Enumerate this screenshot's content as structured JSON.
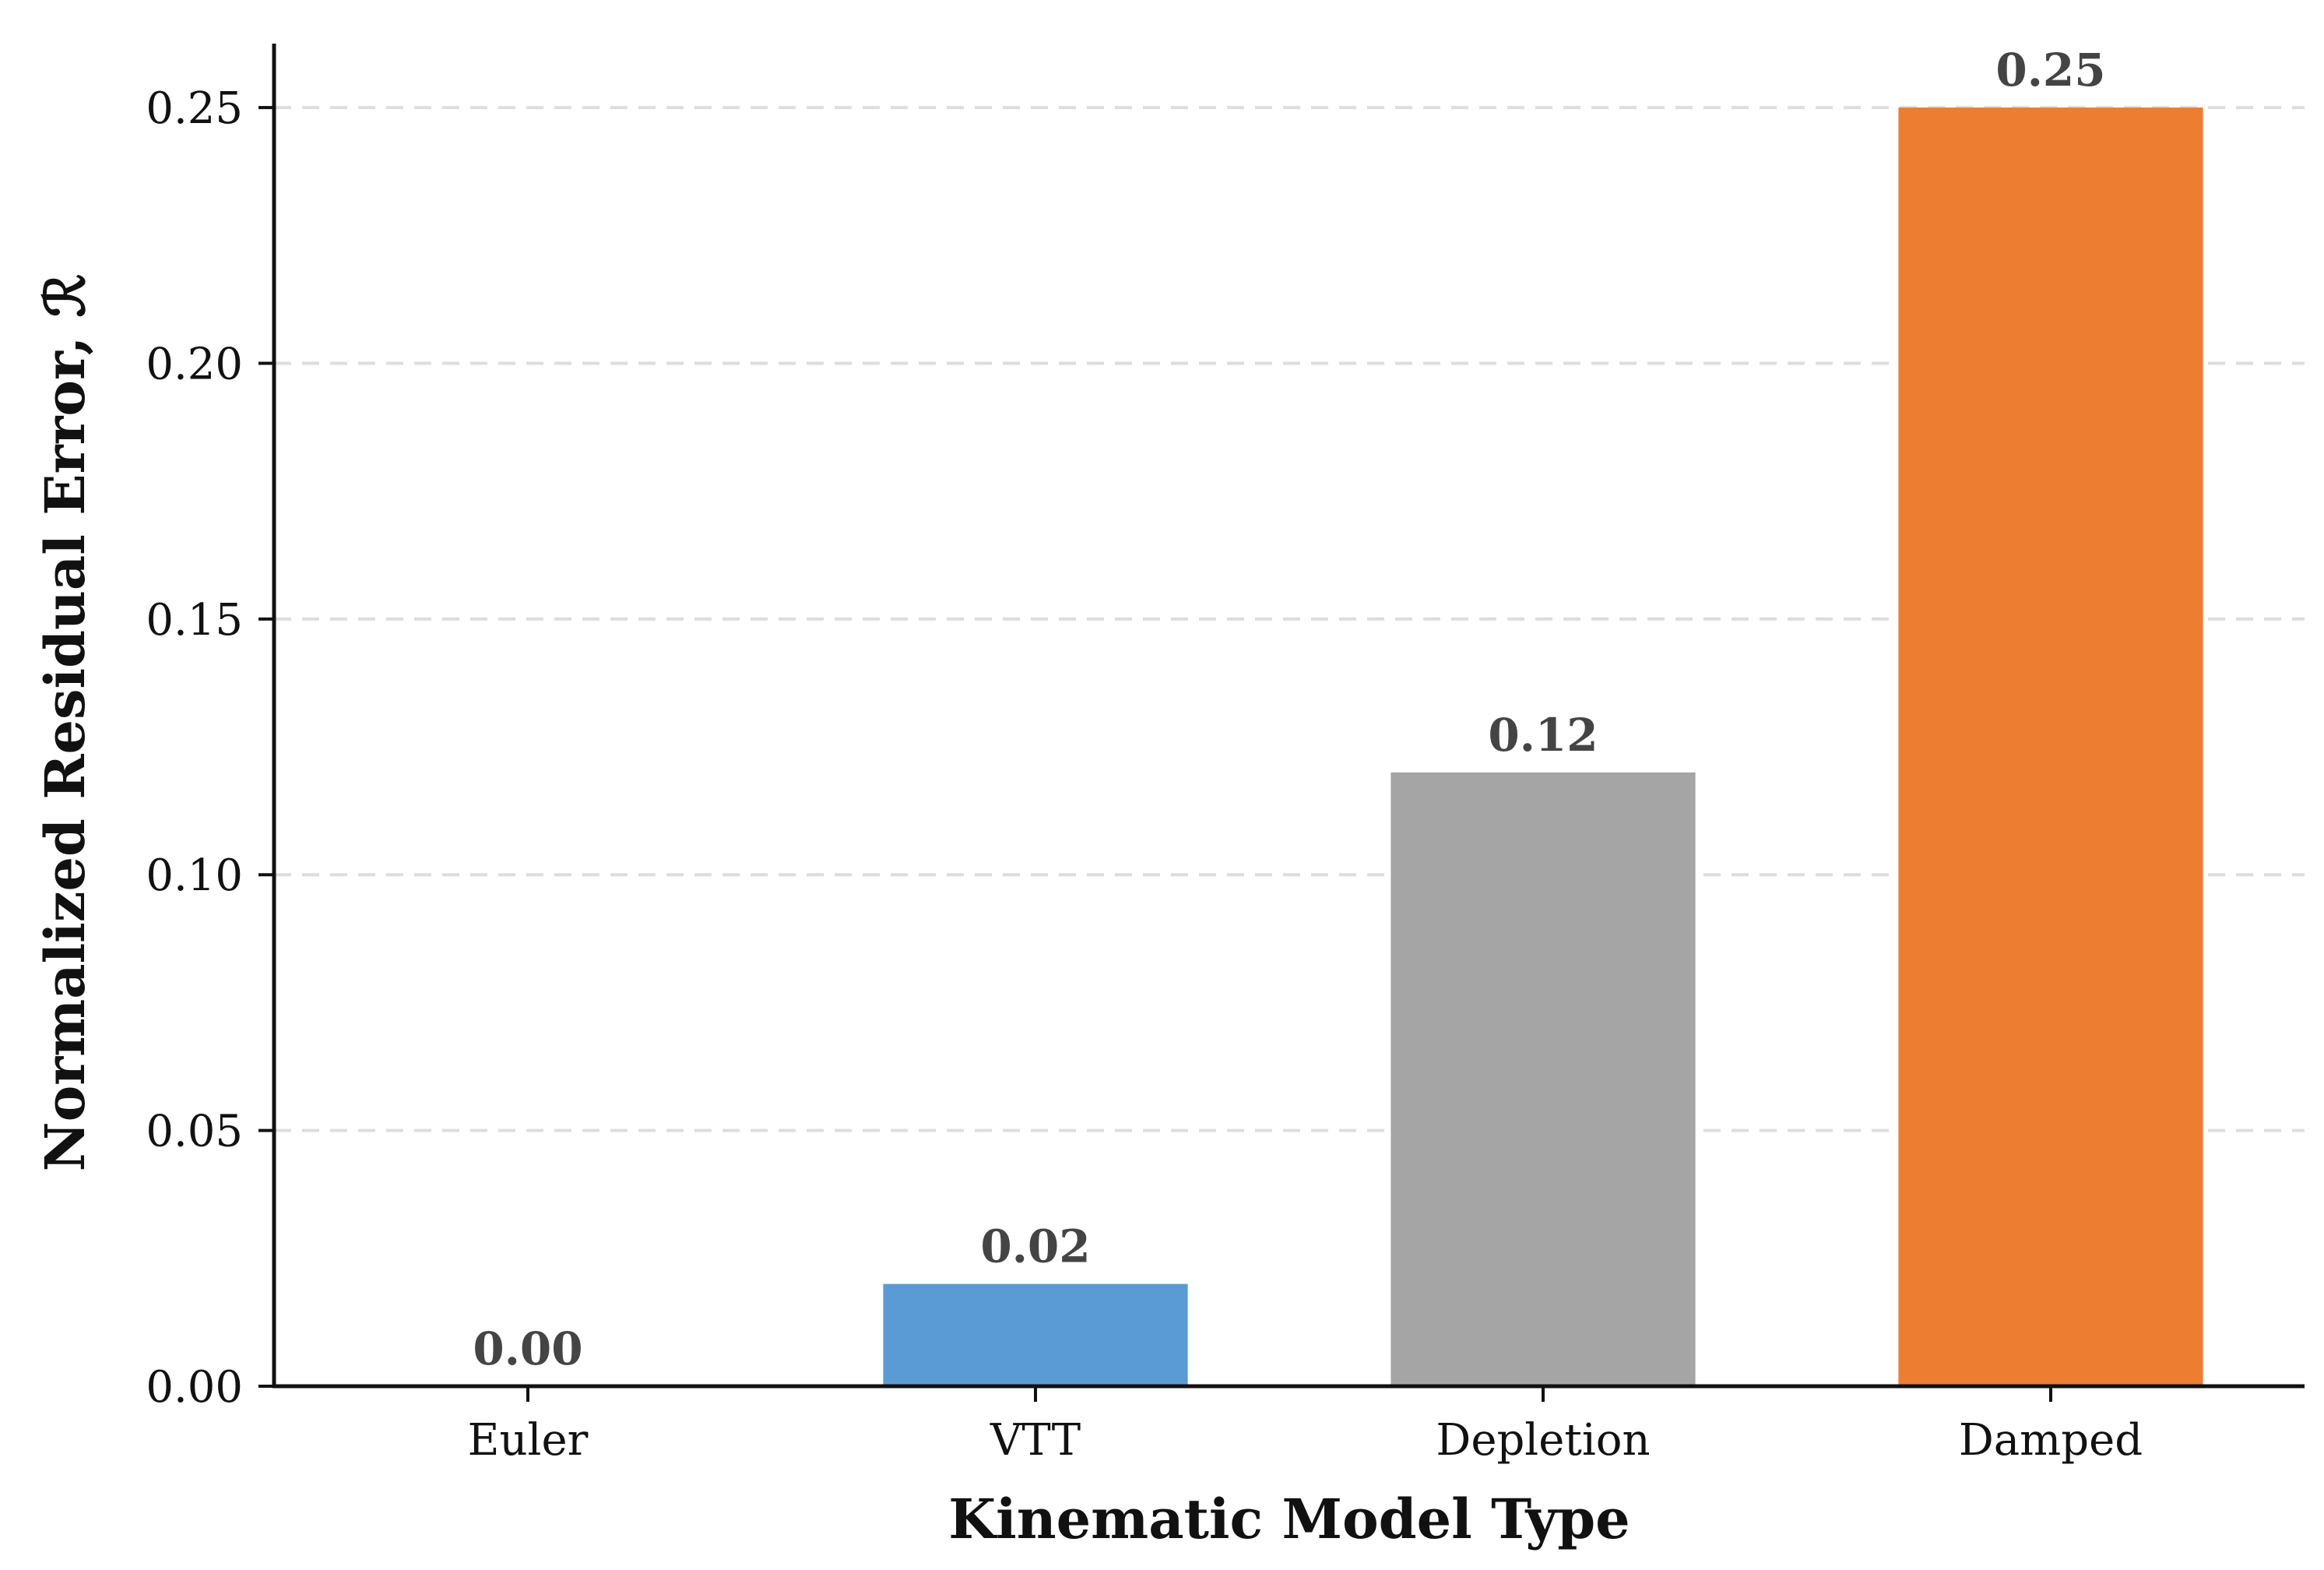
{
  "chart_data": {
    "type": "bar",
    "categories": [
      "Euler",
      "VTT",
      "Depletion",
      "Damped"
    ],
    "values": [
      0.0,
      0.02,
      0.12,
      0.25
    ],
    "value_labels": [
      "0.00",
      "0.02",
      "0.12",
      "0.25"
    ],
    "colors": [
      "#5b9bd5",
      "#5b9bd5",
      "#a5a5a5",
      "#ed7d31"
    ],
    "title": "",
    "xlabel": "Kinematic Model Type",
    "ylabel": "Normalized Residual Error, ℛ",
    "ylim": [
      0,
      0.2625
    ],
    "yticks": [
      0.0,
      0.05,
      0.1,
      0.15,
      0.2,
      0.25
    ],
    "ytick_labels": [
      "0.00",
      "0.05",
      "0.10",
      "0.15",
      "0.20",
      "0.25"
    ],
    "grid": "y-dashed",
    "legend": "none"
  }
}
